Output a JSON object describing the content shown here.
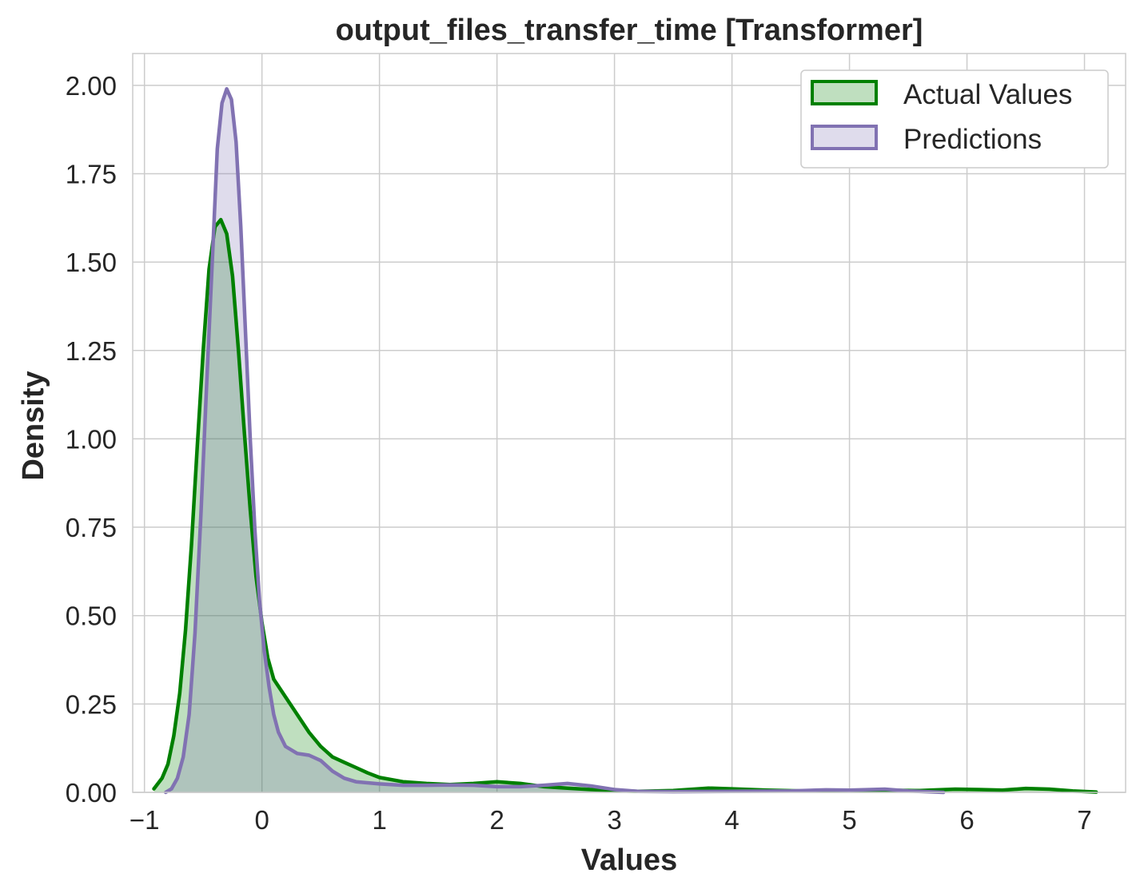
{
  "chart_data": {
    "type": "area",
    "title": "output_files_transfer_time [Transformer]",
    "xlabel": "Values",
    "ylabel": "Density",
    "xlim": [
      -1.1,
      7.35
    ],
    "ylim": [
      0,
      2.09
    ],
    "xticks": [
      -1,
      0,
      1,
      2,
      3,
      4,
      5,
      6,
      7
    ],
    "xtick_labels": [
      "−1",
      "0",
      "1",
      "2",
      "3",
      "4",
      "5",
      "6",
      "7"
    ],
    "yticks": [
      0,
      0.25,
      0.5,
      0.75,
      1.0,
      1.25,
      1.5,
      1.75,
      2.0
    ],
    "ytick_labels": [
      "0.00",
      "0.25",
      "0.50",
      "0.75",
      "1.00",
      "1.25",
      "1.50",
      "1.75",
      "2.00"
    ],
    "grid": true,
    "legend_position": "top-right",
    "series": [
      {
        "name": "Actual Values",
        "line_color": "#008000",
        "fill_color": "#008000",
        "fill_opacity": 0.25,
        "points": [
          [
            -0.92,
            0.01
          ],
          [
            -0.85,
            0.04
          ],
          [
            -0.8,
            0.08
          ],
          [
            -0.75,
            0.16
          ],
          [
            -0.7,
            0.28
          ],
          [
            -0.65,
            0.46
          ],
          [
            -0.6,
            0.7
          ],
          [
            -0.55,
            0.98
          ],
          [
            -0.5,
            1.25
          ],
          [
            -0.45,
            1.48
          ],
          [
            -0.4,
            1.6
          ],
          [
            -0.35,
            1.62
          ],
          [
            -0.3,
            1.58
          ],
          [
            -0.25,
            1.46
          ],
          [
            -0.2,
            1.25
          ],
          [
            -0.15,
            1.02
          ],
          [
            -0.1,
            0.8
          ],
          [
            -0.05,
            0.61
          ],
          [
            0.0,
            0.48
          ],
          [
            0.05,
            0.38
          ],
          [
            0.1,
            0.32
          ],
          [
            0.2,
            0.27
          ],
          [
            0.3,
            0.22
          ],
          [
            0.4,
            0.17
          ],
          [
            0.5,
            0.13
          ],
          [
            0.6,
            0.1
          ],
          [
            0.7,
            0.085
          ],
          [
            0.8,
            0.07
          ],
          [
            0.9,
            0.055
          ],
          [
            1.0,
            0.042
          ],
          [
            1.2,
            0.03
          ],
          [
            1.4,
            0.025
          ],
          [
            1.6,
            0.022
          ],
          [
            1.8,
            0.025
          ],
          [
            2.0,
            0.03
          ],
          [
            2.2,
            0.025
          ],
          [
            2.4,
            0.016
          ],
          [
            2.6,
            0.012
          ],
          [
            2.8,
            0.008
          ],
          [
            3.0,
            0.005
          ],
          [
            3.2,
            0.003
          ],
          [
            3.5,
            0.005
          ],
          [
            3.8,
            0.012
          ],
          [
            4.0,
            0.01
          ],
          [
            4.3,
            0.006
          ],
          [
            4.6,
            0.004
          ],
          [
            5.0,
            0.005
          ],
          [
            5.3,
            0.006
          ],
          [
            5.6,
            0.005
          ],
          [
            5.9,
            0.009
          ],
          [
            6.1,
            0.008
          ],
          [
            6.3,
            0.006
          ],
          [
            6.5,
            0.011
          ],
          [
            6.7,
            0.009
          ],
          [
            6.9,
            0.004
          ],
          [
            7.1,
            0.001
          ]
        ]
      },
      {
        "name": "Predictions",
        "line_color": "#8172b2",
        "fill_color": "#8172b2",
        "fill_opacity": 0.25,
        "points": [
          [
            -0.82,
            0.0
          ],
          [
            -0.77,
            0.01
          ],
          [
            -0.72,
            0.04
          ],
          [
            -0.67,
            0.1
          ],
          [
            -0.62,
            0.22
          ],
          [
            -0.57,
            0.45
          ],
          [
            -0.52,
            0.78
          ],
          [
            -0.47,
            1.16
          ],
          [
            -0.42,
            1.52
          ],
          [
            -0.38,
            1.82
          ],
          [
            -0.34,
            1.95
          ],
          [
            -0.3,
            1.99
          ],
          [
            -0.26,
            1.96
          ],
          [
            -0.22,
            1.84
          ],
          [
            -0.18,
            1.6
          ],
          [
            -0.14,
            1.3
          ],
          [
            -0.1,
            1.0
          ],
          [
            -0.06,
            0.74
          ],
          [
            -0.02,
            0.54
          ],
          [
            0.02,
            0.4
          ],
          [
            0.06,
            0.3
          ],
          [
            0.1,
            0.22
          ],
          [
            0.14,
            0.17
          ],
          [
            0.2,
            0.13
          ],
          [
            0.3,
            0.11
          ],
          [
            0.4,
            0.105
          ],
          [
            0.5,
            0.09
          ],
          [
            0.6,
            0.06
          ],
          [
            0.7,
            0.04
          ],
          [
            0.8,
            0.03
          ],
          [
            1.0,
            0.024
          ],
          [
            1.2,
            0.02
          ],
          [
            1.4,
            0.02
          ],
          [
            1.6,
            0.021
          ],
          [
            1.8,
            0.02
          ],
          [
            2.0,
            0.016
          ],
          [
            2.2,
            0.016
          ],
          [
            2.4,
            0.02
          ],
          [
            2.6,
            0.025
          ],
          [
            2.8,
            0.018
          ],
          [
            3.0,
            0.008
          ],
          [
            3.2,
            0.003
          ],
          [
            3.5,
            0.002
          ],
          [
            4.0,
            0.003
          ],
          [
            4.5,
            0.004
          ],
          [
            4.8,
            0.007
          ],
          [
            5.0,
            0.006
          ],
          [
            5.3,
            0.009
          ],
          [
            5.5,
            0.004
          ],
          [
            5.8,
            0.0
          ]
        ]
      }
    ]
  }
}
